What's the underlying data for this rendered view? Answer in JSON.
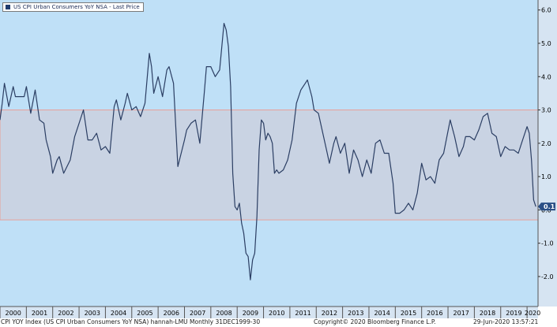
{
  "colors": {
    "plot_bg": "#bfe0f7",
    "band_fill": "#c9d3e3",
    "band_border": "#e8a09a",
    "line": "#2b3e63",
    "axis_strip": "#d6e4f2"
  },
  "legend": {
    "text": "US CPI Urban Consumers YoY NSA - Last Price",
    "icon": "square-icon"
  },
  "footer": {
    "left": "CPI YOY Index (US CPI Urban Consumers YoY NSA) hannah-LMU  Monthly 31DEC1999-30",
    "center": "Copyright© 2020 Bloomberg Finance L.P.",
    "right": "29-Jun-2020 13:57:21"
  },
  "chart_data": {
    "type": "line",
    "title": "",
    "xlabel": "",
    "ylabel": "",
    "ylim": [
      -2.9,
      6.3
    ],
    "xlim": [
      "2000-01",
      "2020-06"
    ],
    "y_ticks": [
      "6.0",
      "5.0",
      "4.0",
      "3.0",
      "2.0",
      "1.0",
      "0.0",
      "-1.0",
      "-2.0"
    ],
    "x_ticks": [
      "2000",
      "2001",
      "2002",
      "2003",
      "2004",
      "2005",
      "2006",
      "2007",
      "2008",
      "2009",
      "2010",
      "2011",
      "2012",
      "2013",
      "2014",
      "2015",
      "2016",
      "2017",
      "2018",
      "2019",
      "2020"
    ],
    "band": [
      -0.3,
      3.0
    ],
    "last_value": 0.1,
    "last_value_label": "0.1",
    "grid": false,
    "legend_position": "top-left",
    "series": [
      {
        "name": "US CPI Urban Consumers YoY NSA - Last Price",
        "points": [
          [
            "2000-01",
            2.7
          ],
          [
            "2000-02",
            3.2
          ],
          [
            "2000-03",
            3.8
          ],
          [
            "2000-05",
            3.1
          ],
          [
            "2000-07",
            3.7
          ],
          [
            "2000-08",
            3.4
          ],
          [
            "2000-10",
            3.4
          ],
          [
            "2000-12",
            3.4
          ],
          [
            "2001-01",
            3.7
          ],
          [
            "2001-03",
            2.9
          ],
          [
            "2001-05",
            3.6
          ],
          [
            "2001-07",
            2.7
          ],
          [
            "2001-09",
            2.6
          ],
          [
            "2001-10",
            2.1
          ],
          [
            "2001-12",
            1.6
          ],
          [
            "2002-01",
            1.1
          ],
          [
            "2002-03",
            1.5
          ],
          [
            "2002-04",
            1.6
          ],
          [
            "2002-06",
            1.1
          ],
          [
            "2002-09",
            1.5
          ],
          [
            "2002-11",
            2.2
          ],
          [
            "2003-01",
            2.6
          ],
          [
            "2003-03",
            3.0
          ],
          [
            "2003-05",
            2.1
          ],
          [
            "2003-07",
            2.1
          ],
          [
            "2003-09",
            2.3
          ],
          [
            "2003-11",
            1.8
          ],
          [
            "2004-01",
            1.9
          ],
          [
            "2004-03",
            1.7
          ],
          [
            "2004-05",
            3.1
          ],
          [
            "2004-06",
            3.3
          ],
          [
            "2004-08",
            2.7
          ],
          [
            "2004-10",
            3.2
          ],
          [
            "2004-11",
            3.5
          ],
          [
            "2005-01",
            3.0
          ],
          [
            "2005-03",
            3.1
          ],
          [
            "2005-05",
            2.8
          ],
          [
            "2005-07",
            3.2
          ],
          [
            "2005-09",
            4.7
          ],
          [
            "2005-10",
            4.3
          ],
          [
            "2005-11",
            3.5
          ],
          [
            "2006-01",
            4.0
          ],
          [
            "2006-03",
            3.4
          ],
          [
            "2006-05",
            4.2
          ],
          [
            "2006-06",
            4.3
          ],
          [
            "2006-08",
            3.8
          ],
          [
            "2006-10",
            1.3
          ],
          [
            "2007-01",
            2.1
          ],
          [
            "2007-02",
            2.4
          ],
          [
            "2007-04",
            2.6
          ],
          [
            "2007-06",
            2.7
          ],
          [
            "2007-08",
            2.0
          ],
          [
            "2007-10",
            3.5
          ],
          [
            "2007-11",
            4.3
          ],
          [
            "2008-01",
            4.3
          ],
          [
            "2008-03",
            4.0
          ],
          [
            "2008-05",
            4.2
          ],
          [
            "2008-07",
            5.6
          ],
          [
            "2008-08",
            5.4
          ],
          [
            "2008-09",
            4.9
          ],
          [
            "2008-10",
            3.7
          ],
          [
            "2008-11",
            1.1
          ],
          [
            "2008-12",
            0.1
          ],
          [
            "2009-01",
            0.0
          ],
          [
            "2009-02",
            0.2
          ],
          [
            "2009-03",
            -0.4
          ],
          [
            "2009-04",
            -0.7
          ],
          [
            "2009-05",
            -1.3
          ],
          [
            "2009-06",
            -1.4
          ],
          [
            "2009-07",
            -2.1
          ],
          [
            "2009-08",
            -1.5
          ],
          [
            "2009-09",
            -1.3
          ],
          [
            "2009-10",
            -0.2
          ],
          [
            "2009-11",
            1.8
          ],
          [
            "2009-12",
            2.7
          ],
          [
            "2010-01",
            2.6
          ],
          [
            "2010-02",
            2.1
          ],
          [
            "2010-03",
            2.3
          ],
          [
            "2010-04",
            2.2
          ],
          [
            "2010-05",
            2.0
          ],
          [
            "2010-06",
            1.1
          ],
          [
            "2010-07",
            1.2
          ],
          [
            "2010-08",
            1.1
          ],
          [
            "2010-10",
            1.2
          ],
          [
            "2010-12",
            1.5
          ],
          [
            "2011-02",
            2.1
          ],
          [
            "2011-04",
            3.2
          ],
          [
            "2011-06",
            3.6
          ],
          [
            "2011-08",
            3.8
          ],
          [
            "2011-09",
            3.9
          ],
          [
            "2011-11",
            3.4
          ],
          [
            "2011-12",
            3.0
          ],
          [
            "2012-02",
            2.9
          ],
          [
            "2012-04",
            2.3
          ],
          [
            "2012-06",
            1.7
          ],
          [
            "2012-07",
            1.4
          ],
          [
            "2012-09",
            2.0
          ],
          [
            "2012-10",
            2.2
          ],
          [
            "2012-12",
            1.7
          ],
          [
            "2013-02",
            2.0
          ],
          [
            "2013-04",
            1.1
          ],
          [
            "2013-06",
            1.8
          ],
          [
            "2013-08",
            1.5
          ],
          [
            "2013-10",
            1.0
          ],
          [
            "2013-12",
            1.5
          ],
          [
            "2014-02",
            1.1
          ],
          [
            "2014-04",
            2.0
          ],
          [
            "2014-06",
            2.1
          ],
          [
            "2014-08",
            1.7
          ],
          [
            "2014-10",
            1.7
          ],
          [
            "2014-12",
            0.8
          ],
          [
            "2015-01",
            -0.1
          ],
          [
            "2015-03",
            -0.1
          ],
          [
            "2015-05",
            0.0
          ],
          [
            "2015-07",
            0.2
          ],
          [
            "2015-09",
            0.0
          ],
          [
            "2015-11",
            0.5
          ],
          [
            "2016-01",
            1.4
          ],
          [
            "2016-03",
            0.9
          ],
          [
            "2016-05",
            1.0
          ],
          [
            "2016-07",
            0.8
          ],
          [
            "2016-09",
            1.5
          ],
          [
            "2016-11",
            1.7
          ],
          [
            "2017-02",
            2.7
          ],
          [
            "2017-04",
            2.2
          ],
          [
            "2017-06",
            1.6
          ],
          [
            "2017-08",
            1.9
          ],
          [
            "2017-09",
            2.2
          ],
          [
            "2017-11",
            2.2
          ],
          [
            "2018-01",
            2.1
          ],
          [
            "2018-03",
            2.4
          ],
          [
            "2018-05",
            2.8
          ],
          [
            "2018-07",
            2.9
          ],
          [
            "2018-09",
            2.3
          ],
          [
            "2018-11",
            2.2
          ],
          [
            "2019-01",
            1.6
          ],
          [
            "2019-03",
            1.9
          ],
          [
            "2019-05",
            1.8
          ],
          [
            "2019-07",
            1.8
          ],
          [
            "2019-09",
            1.7
          ],
          [
            "2019-11",
            2.1
          ],
          [
            "2020-01",
            2.5
          ],
          [
            "2020-02",
            2.3
          ],
          [
            "2020-03",
            1.5
          ],
          [
            "2020-04",
            0.3
          ],
          [
            "2020-05",
            0.1
          ]
        ]
      }
    ]
  }
}
